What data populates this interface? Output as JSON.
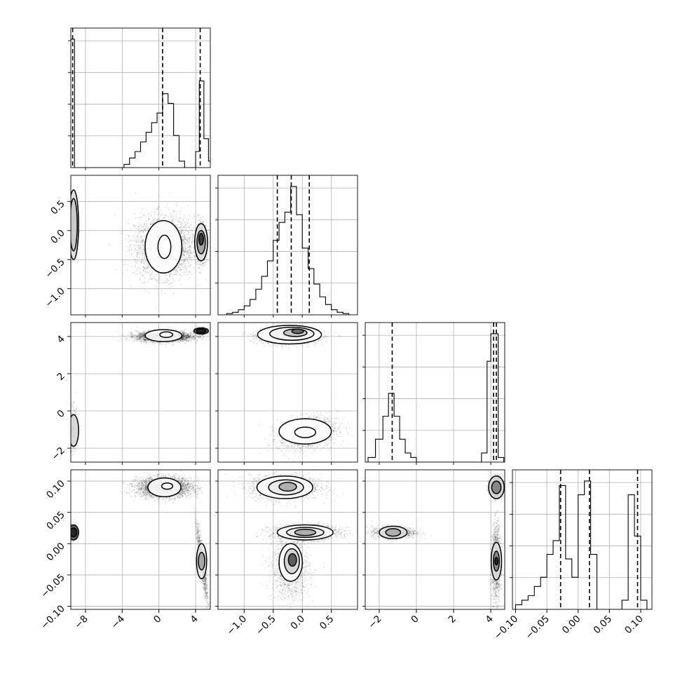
{
  "chart_data": {
    "type": "corner",
    "description_free": true,
    "parameters": [
      {
        "range": [
          -9.6,
          5.6
        ],
        "ticks": [
          -8,
          -4,
          0,
          4
        ],
        "tick_labels": [
          "−8",
          "−4",
          "0",
          "4"
        ]
      },
      {
        "range": [
          -1.45,
          0.95
        ],
        "ticks": [
          -1.0,
          -0.5,
          0.0,
          0.5
        ],
        "tick_labels": [
          "−1.0",
          "−0.5",
          "0.0",
          "0.5"
        ]
      },
      {
        "range": [
          -2.75,
          4.75
        ],
        "ticks": [
          -2,
          0,
          2,
          4
        ],
        "tick_labels": [
          "−2",
          "0",
          "2",
          "4"
        ]
      },
      {
        "range": [
          -0.105,
          0.118
        ],
        "ticks": [
          -0.1,
          -0.05,
          0.0,
          0.05,
          0.1
        ],
        "tick_labels": [
          "−0.10",
          "−0.05",
          "0.00",
          "0.05",
          "0.10"
        ]
      }
    ],
    "histograms": [
      {
        "param": 0,
        "bin_edges": [
          -10.0,
          -9.2,
          -8.8,
          -3.8,
          -3.2,
          -2.6,
          -2.0,
          -1.4,
          -0.8,
          -0.2,
          0.4,
          1.0,
          1.6,
          2.2,
          2.8,
          3.4,
          4.0,
          4.4,
          4.9,
          5.4,
          6.0
        ],
        "counts": [
          40,
          0,
          0,
          1,
          3,
          5,
          8,
          11,
          14,
          17,
          23,
          20,
          10,
          2,
          0,
          0,
          5,
          27,
          9,
          2
        ],
        "quantiles": [
          -9.4,
          0.4,
          4.5
        ]
      },
      {
        "param": 1,
        "bin_edges": [
          -1.3,
          -1.2,
          -1.1,
          -1.0,
          -0.9,
          -0.8,
          -0.7,
          -0.6,
          -0.5,
          -0.4,
          -0.3,
          -0.2,
          -0.1,
          0.0,
          0.1,
          0.2,
          0.3,
          0.4,
          0.5,
          0.6,
          0.7,
          0.8
        ],
        "counts": [
          1,
          2,
          4,
          7,
          12,
          20,
          30,
          42,
          58,
          72,
          80,
          100,
          78,
          52,
          36,
          24,
          14,
          8,
          4,
          2,
          1
        ],
        "quantiles": [
          -0.43,
          -0.19,
          0.12
        ]
      },
      {
        "param": 2,
        "bin_edges": [
          -2.6,
          -2.2,
          -1.8,
          -1.5,
          -1.2,
          -0.9,
          -0.6,
          -0.3,
          0.0,
          3.5,
          3.8,
          4.0,
          4.2,
          4.4,
          4.7
        ],
        "counts": [
          1,
          5,
          10,
          15,
          10,
          5,
          2,
          1,
          0,
          2,
          22,
          28,
          28,
          1
        ],
        "quantiles": [
          -1.3,
          4.15,
          4.3
        ]
      },
      {
        "param": 3,
        "bin_edges": [
          -0.1,
          -0.09,
          -0.08,
          -0.07,
          -0.06,
          -0.05,
          -0.04,
          -0.03,
          -0.02,
          -0.01,
          0.0,
          0.01,
          0.02,
          0.03,
          0.04,
          0.05,
          0.06,
          0.07,
          0.08,
          0.09,
          0.1,
          0.11,
          0.12
        ],
        "counts": [
          1,
          2,
          3,
          5,
          7,
          12,
          15,
          27,
          11,
          7,
          25,
          28,
          12,
          0,
          0,
          0,
          0,
          2,
          25,
          16,
          2,
          0
        ],
        "quantiles": [
          -0.028,
          0.018,
          0.095
        ]
      }
    ],
    "panels_2d": [
      {
        "row": 1,
        "col": 0,
        "clusters": [
          {
            "cx": -9.35,
            "cy": 0.05,
            "sx": 0.25,
            "sy": 0.22,
            "r": 0,
            "n": 380
          },
          {
            "cx": 0.6,
            "cy": -0.28,
            "sx": 1.6,
            "sy": 0.26,
            "r": 0.0,
            "n": 3200
          },
          {
            "cx": 4.6,
            "cy": -0.2,
            "sx": 0.3,
            "sy": 0.16,
            "r": 0,
            "n": 1100
          }
        ],
        "contours": [
          {
            "cx": -9.3,
            "cy": 0.1,
            "rx": 0.55,
            "ry": 0.6,
            "fill": "#dcdcdc"
          },
          {
            "cx": -9.3,
            "cy": 0.1,
            "rx": 0.4,
            "ry": 0.45,
            "fill": "#c8c8c8"
          },
          {
            "cx": 0.5,
            "cy": -0.28,
            "rx": 2.0,
            "ry": 0.45,
            "fill": "#ffffff"
          },
          {
            "cx": 0.6,
            "cy": -0.28,
            "rx": 0.7,
            "ry": 0.2,
            "fill": "#ffffff"
          },
          {
            "cx": 4.6,
            "cy": -0.2,
            "rx": 0.7,
            "ry": 0.32,
            "fill": "#e0e0e0"
          },
          {
            "cx": 4.6,
            "cy": -0.2,
            "rx": 0.45,
            "ry": 0.2,
            "fill": "#a0a0a0"
          },
          {
            "cx": 4.6,
            "cy": -0.15,
            "rx": 0.25,
            "ry": 0.1,
            "fill": "#303030"
          }
        ]
      },
      {
        "row": 2,
        "col": 0,
        "clusters": [
          {
            "cx": -9.35,
            "cy": -1.0,
            "sx": 0.25,
            "sy": 0.6,
            "r": 0,
            "n": 380
          },
          {
            "cx": 0.6,
            "cy": 4.0,
            "sx": 1.5,
            "sy": 0.14,
            "r": 0,
            "n": 3200
          },
          {
            "cx": 4.6,
            "cy": 4.3,
            "sx": 0.3,
            "sy": 0.08,
            "r": 0,
            "n": 1100
          }
        ],
        "contours": [
          {
            "cx": -9.3,
            "cy": -1.05,
            "rx": 0.55,
            "ry": 0.85,
            "fill": "#d8d8d8"
          },
          {
            "cx": 0.5,
            "cy": 4.05,
            "rx": 2.0,
            "ry": 0.32,
            "fill": "#ffffff"
          },
          {
            "cx": 0.8,
            "cy": 4.1,
            "rx": 0.7,
            "ry": 0.15,
            "fill": "#ffffff"
          },
          {
            "cx": 4.6,
            "cy": 4.3,
            "rx": 0.8,
            "ry": 0.16,
            "fill": "#505050"
          },
          {
            "cx": 4.6,
            "cy": 4.3,
            "rx": 0.5,
            "ry": 0.1,
            "fill": "#202020"
          }
        ]
      },
      {
        "row": 2,
        "col": 1,
        "clusters": [
          {
            "cx": -0.25,
            "cy": 4.0,
            "sx": 0.25,
            "sy": 0.2,
            "r": 0,
            "n": 1700
          },
          {
            "cx": 0.1,
            "cy": -1.2,
            "sx": 0.25,
            "sy": 0.45,
            "r": 0.3,
            "n": 1400
          }
        ],
        "contours": [
          {
            "cx": -0.22,
            "cy": 4.1,
            "rx": 0.55,
            "ry": 0.5,
            "fill": "#ffffff"
          },
          {
            "cx": -0.18,
            "cy": 4.15,
            "rx": 0.38,
            "ry": 0.35,
            "fill": "#f0f0f0"
          },
          {
            "cx": -0.12,
            "cy": 4.2,
            "rx": 0.2,
            "ry": 0.2,
            "fill": "#c0c0c0"
          },
          {
            "cx": -0.08,
            "cy": 4.28,
            "rx": 0.1,
            "ry": 0.12,
            "fill": "#606060"
          },
          {
            "cx": 0.05,
            "cy": -1.1,
            "rx": 0.45,
            "ry": 0.68,
            "fill": "#ffffff"
          },
          {
            "cx": 0.05,
            "cy": -1.15,
            "rx": 0.18,
            "ry": 0.28,
            "fill": "#ffffff"
          }
        ]
      },
      {
        "row": 3,
        "col": 0,
        "clusters": [
          {
            "cx": -9.35,
            "cy": 0.018,
            "sx": 0.22,
            "sy": 0.006,
            "r": 0,
            "n": 300
          },
          {
            "cx": 0.6,
            "cy": 0.09,
            "sx": 1.5,
            "sy": 0.008,
            "r": 0,
            "n": 3200
          },
          {
            "cx": 4.7,
            "cy": -0.03,
            "sx": 0.3,
            "sy": 0.03,
            "r": -0.9,
            "n": 1000
          }
        ],
        "contours": [
          {
            "cx": -9.3,
            "cy": 0.018,
            "rx": 0.55,
            "ry": 0.012,
            "fill": "#505050"
          },
          {
            "cx": -9.3,
            "cy": 0.018,
            "rx": 0.35,
            "ry": 0.007,
            "fill": "#202020"
          },
          {
            "cx": 0.6,
            "cy": 0.09,
            "rx": 1.8,
            "ry": 0.015,
            "fill": "#ffffff"
          },
          {
            "cx": 0.9,
            "cy": 0.092,
            "rx": 0.6,
            "ry": 0.005,
            "fill": "#ffffff"
          },
          {
            "cx": 4.65,
            "cy": -0.028,
            "rx": 0.55,
            "ry": 0.028,
            "fill": "#e8e8e8"
          },
          {
            "cx": 4.65,
            "cy": -0.028,
            "rx": 0.35,
            "ry": 0.014,
            "fill": "#a0a0a0"
          }
        ]
      },
      {
        "row": 3,
        "col": 1,
        "clusters": [
          {
            "cx": -0.3,
            "cy": 0.09,
            "sx": 0.3,
            "sy": 0.01,
            "r": 0,
            "n": 1500
          },
          {
            "cx": 0.05,
            "cy": 0.018,
            "sx": 0.3,
            "sy": 0.006,
            "r": 0,
            "n": 1500
          },
          {
            "cx": -0.2,
            "cy": -0.04,
            "sx": 0.16,
            "sy": 0.025,
            "r": 0,
            "n": 1200
          }
        ],
        "contours": [
          {
            "cx": -0.3,
            "cy": 0.09,
            "rx": 0.48,
            "ry": 0.018,
            "fill": "#ffffff"
          },
          {
            "cx": -0.28,
            "cy": 0.09,
            "rx": 0.3,
            "ry": 0.012,
            "fill": "#e8e8e8"
          },
          {
            "cx": -0.25,
            "cy": 0.091,
            "rx": 0.15,
            "ry": 0.007,
            "fill": "#a8a8a8"
          },
          {
            "cx": 0.05,
            "cy": 0.018,
            "rx": 0.48,
            "ry": 0.012,
            "fill": "#ffffff"
          },
          {
            "cx": 0.05,
            "cy": 0.018,
            "rx": 0.32,
            "ry": 0.008,
            "fill": "#e8e8e8"
          },
          {
            "cx": 0.05,
            "cy": 0.018,
            "rx": 0.18,
            "ry": 0.005,
            "fill": "#a8a8a8"
          },
          {
            "cx": -0.2,
            "cy": -0.03,
            "rx": 0.2,
            "ry": 0.03,
            "fill": "#ffffff"
          },
          {
            "cx": -0.18,
            "cy": -0.028,
            "rx": 0.13,
            "ry": 0.02,
            "fill": "#d0d0d0"
          },
          {
            "cx": -0.17,
            "cy": -0.026,
            "rx": 0.07,
            "ry": 0.01,
            "fill": "#505050"
          }
        ]
      },
      {
        "row": 3,
        "col": 2,
        "clusters": [
          {
            "cx": 4.3,
            "cy": 0.09,
            "sx": 0.18,
            "sy": 0.008,
            "r": 0,
            "n": 1300
          },
          {
            "cx": -1.2,
            "cy": 0.018,
            "sx": 0.6,
            "sy": 0.005,
            "r": 0,
            "n": 900
          },
          {
            "cx": 4.3,
            "cy": -0.03,
            "sx": 0.12,
            "sy": 0.03,
            "r": 0,
            "n": 1300
          }
        ],
        "contours": [
          {
            "cx": 4.3,
            "cy": 0.09,
            "rx": 0.42,
            "ry": 0.018,
            "fill": "#d8d8d8"
          },
          {
            "cx": 4.3,
            "cy": 0.09,
            "rx": 0.25,
            "ry": 0.01,
            "fill": "#808080"
          },
          {
            "cx": -1.25,
            "cy": 0.018,
            "rx": 0.75,
            "ry": 0.01,
            "fill": "#e0e0e0"
          },
          {
            "cx": -1.25,
            "cy": 0.018,
            "rx": 0.4,
            "ry": 0.006,
            "fill": "#a8a8a8"
          },
          {
            "cx": 4.3,
            "cy": -0.028,
            "rx": 0.28,
            "ry": 0.03,
            "fill": "#e0e0e0"
          },
          {
            "cx": 4.3,
            "cy": -0.028,
            "rx": 0.16,
            "ry": 0.016,
            "fill": "#808080"
          },
          {
            "cx": 4.3,
            "cy": -0.028,
            "rx": 0.08,
            "ry": 0.006,
            "fill": "#202020"
          }
        ]
      }
    ],
    "colors": {
      "line": "#000000",
      "scatter": "#000000",
      "grid": "#b0b0b0",
      "background": "#ffffff"
    },
    "grid": true,
    "legend": "none"
  }
}
